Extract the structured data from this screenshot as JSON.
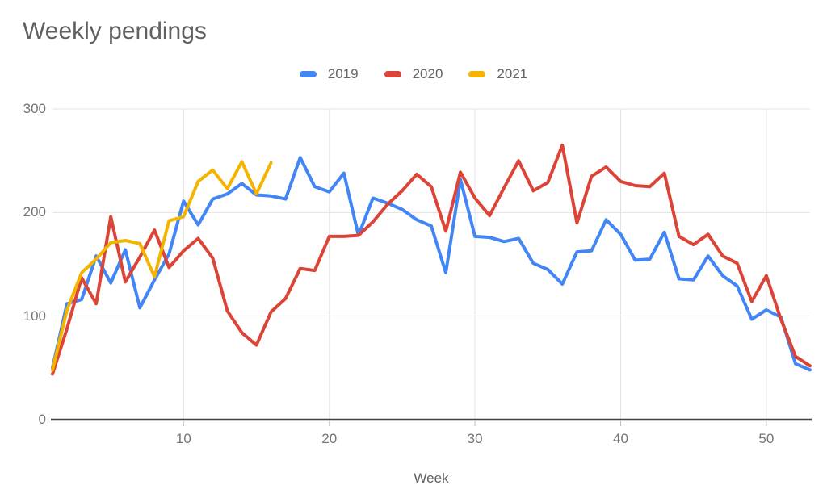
{
  "chart": {
    "title": "Weekly pendings",
    "xlabel": "Week"
  },
  "chart_data": {
    "type": "line",
    "title": "Weekly pendings",
    "xlabel": "Week",
    "ylabel": "",
    "xlim": [
      1,
      53
    ],
    "ylim": [
      0,
      300
    ],
    "x_ticks": [
      10,
      20,
      30,
      40,
      50
    ],
    "y_ticks": [
      0,
      100,
      200,
      300
    ],
    "grid": true,
    "legend_position": "top-center",
    "x_start_week": 1,
    "series": [
      {
        "name": "2019",
        "color": "#4285F4",
        "values": [
          50,
          112,
          116,
          158,
          132,
          164,
          108,
          135,
          160,
          211,
          188,
          213,
          218,
          228,
          217,
          216,
          213,
          253,
          225,
          220,
          238,
          178,
          214,
          209,
          203,
          193,
          187,
          142,
          232,
          177,
          176,
          172,
          175,
          151,
          145,
          131,
          162,
          163,
          193,
          179,
          154,
          155,
          181,
          136,
          135,
          158,
          139,
          129,
          97,
          106,
          99,
          54,
          48
        ]
      },
      {
        "name": "2020",
        "color": "#DB4437",
        "values": [
          44,
          88,
          137,
          112,
          196,
          133,
          157,
          183,
          147,
          163,
          175,
          156,
          105,
          84,
          72,
          104,
          117,
          146,
          144,
          177,
          177,
          178,
          191,
          208,
          221,
          237,
          225,
          182,
          239,
          214,
          197,
          224,
          250,
          221,
          229,
          265,
          190,
          235,
          244,
          230,
          226,
          225,
          238,
          177,
          169,
          179,
          158,
          151,
          114,
          139,
          97,
          61,
          52
        ]
      },
      {
        "name": "2021",
        "color": "#F4B400",
        "values": [
          48,
          106,
          142,
          155,
          171,
          173,
          170,
          138,
          192,
          196,
          230,
          241,
          223,
          249,
          218,
          248
        ]
      }
    ],
    "style": {
      "gridline_color": "#e3e3e3",
      "baseline_color": "#424242",
      "tick_color": "#c0c0c0",
      "title_color": "#616161",
      "tick_label_color": "#757575",
      "background": "#ffffff"
    }
  }
}
